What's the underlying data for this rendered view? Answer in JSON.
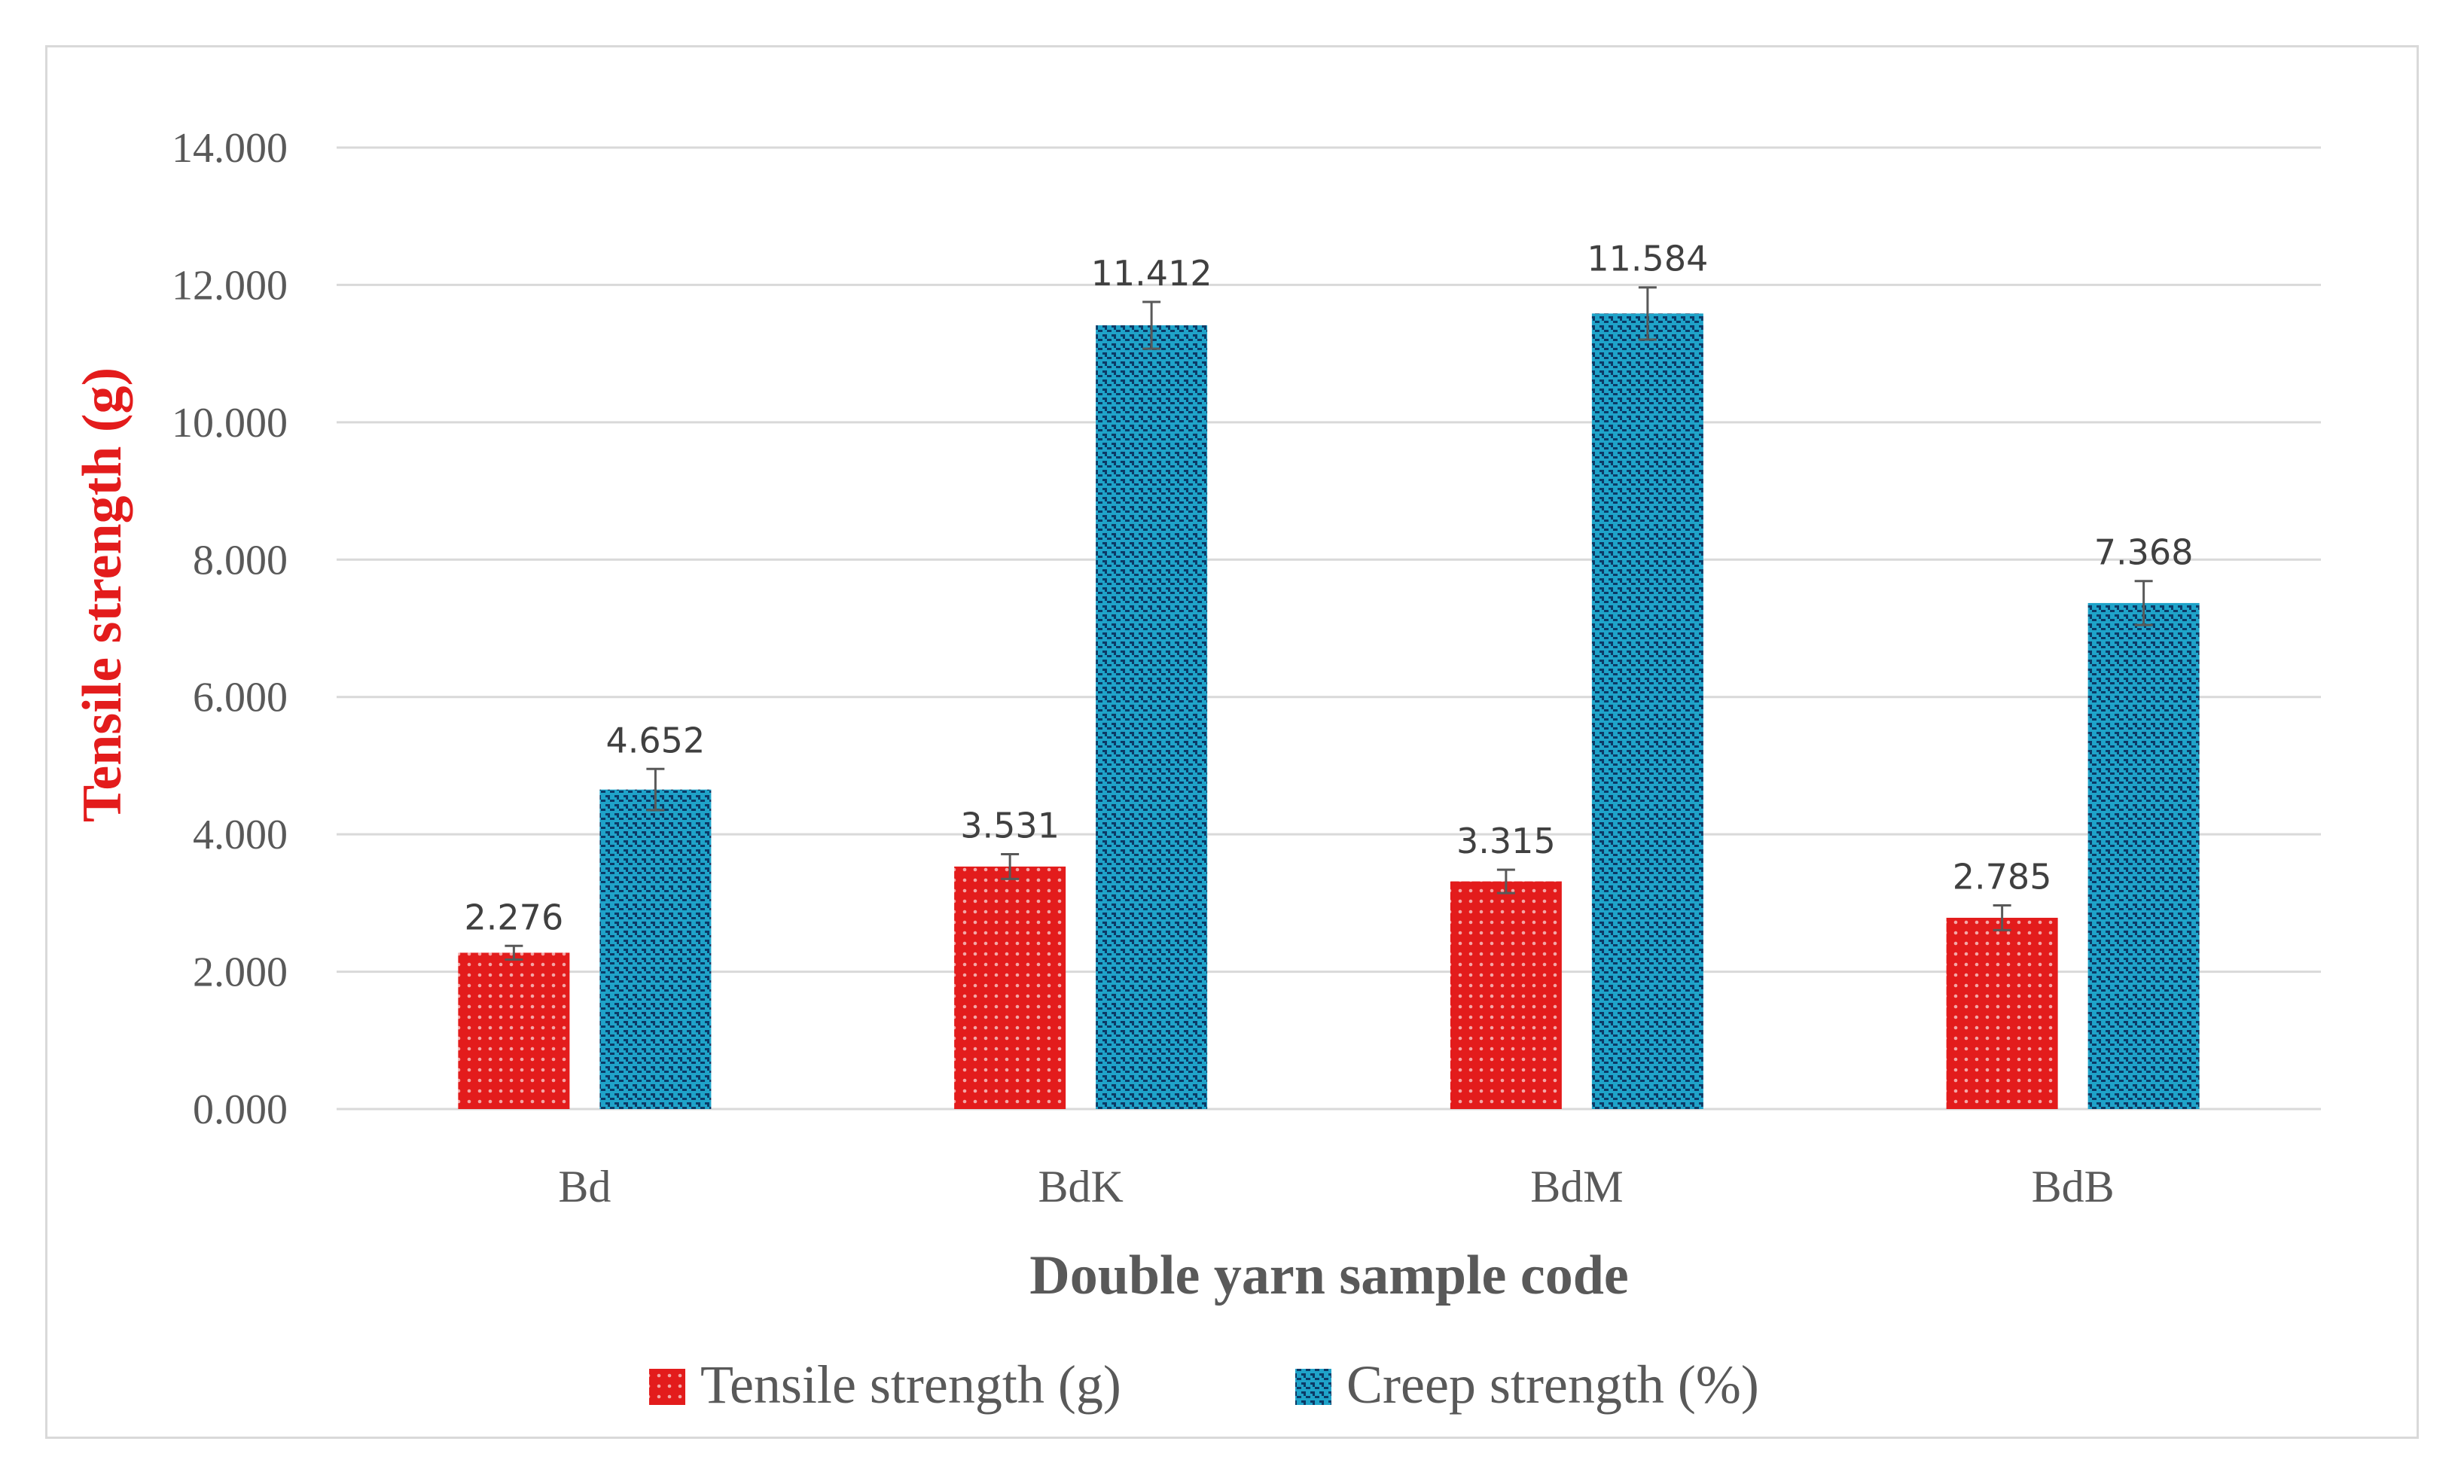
{
  "chart_data": {
    "type": "bar",
    "title": "",
    "xlabel": "Double yarn sample code",
    "ylabel": "Tensile strength (g)",
    "ylim": [
      0,
      14
    ],
    "yticks": [
      "0.000",
      "2.000",
      "4.000",
      "6.000",
      "8.000",
      "10.000",
      "12.000",
      "14.000"
    ],
    "grid": true,
    "legend_position": "bottom",
    "categories": [
      "Bd",
      "BdK",
      "BdM",
      "BdB"
    ],
    "series": [
      {
        "name": "Tensile strength (g)",
        "values": [
          2.276,
          3.531,
          3.315,
          2.785
        ],
        "labels": [
          "2.276",
          "3.531",
          "3.315",
          "2.785"
        ],
        "errors": [
          0.1,
          0.18,
          0.17,
          0.18
        ],
        "color": "#e31c1c",
        "dot_color": "#f4a6a6"
      },
      {
        "name": "Creep strength (%)",
        "values": [
          4.652,
          11.412,
          11.584,
          7.368
        ],
        "labels": [
          "4.652",
          "11.412",
          "11.584",
          "7.368"
        ],
        "errors": [
          0.3,
          0.34,
          0.38,
          0.32
        ],
        "color": "#1fa3c9",
        "dot_color": "#0c3a66"
      }
    ]
  }
}
